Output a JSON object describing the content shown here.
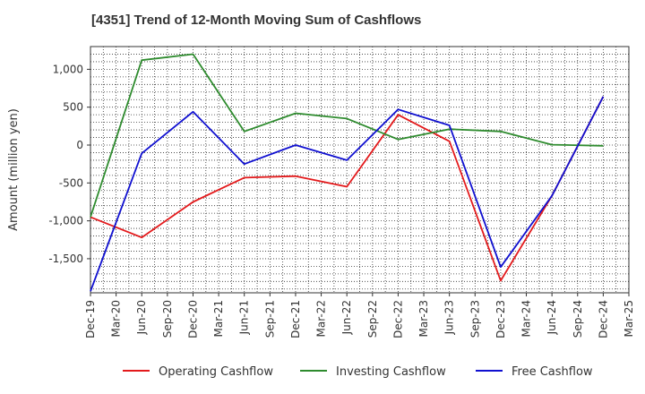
{
  "chart_data": {
    "type": "line",
    "title": "[4351]  Trend of 12-Month Moving Sum of Cashflows",
    "ylabel": "Amount (million yen)",
    "xlabel": "",
    "x_ticks": [
      "Dec-19",
      "Mar-20",
      "Jun-20",
      "Sep-20",
      "Dec-20",
      "Mar-21",
      "Jun-21",
      "Sep-21",
      "Dec-21",
      "Mar-22",
      "Jun-22",
      "Sep-22",
      "Dec-22",
      "Mar-23",
      "Jun-23",
      "Sep-23",
      "Dec-23",
      "Mar-24",
      "Jun-24",
      "Sep-24",
      "Dec-24",
      "Mar-25"
    ],
    "y_ticks": [
      1000,
      500,
      0,
      -500,
      -1000,
      -1500
    ],
    "y_tick_labels": [
      "1,000",
      "500",
      "0",
      "-500",
      "-1,000",
      "-1,500"
    ],
    "ylim": [
      -1950,
      1300
    ],
    "grid": true,
    "legend_position": "bottom",
    "series": [
      {
        "name": "Operating Cashflow",
        "color": "#e31a1c",
        "points": [
          [
            "Dec-19",
            -950
          ],
          [
            "Jun-20",
            -1220
          ],
          [
            "Dec-20",
            -750
          ],
          [
            "Jun-21",
            -430
          ],
          [
            "Dec-21",
            -410
          ],
          [
            "Jun-22",
            -550
          ],
          [
            "Dec-22",
            400
          ],
          [
            "Jun-23",
            50
          ],
          [
            "Dec-23",
            -1790
          ],
          [
            "Jun-24",
            -670
          ],
          [
            "Dec-24",
            640
          ]
        ]
      },
      {
        "name": "Investing Cashflow",
        "color": "#2e8b2e",
        "points": [
          [
            "Dec-19",
            -950
          ],
          [
            "Jun-20",
            1120
          ],
          [
            "Dec-20",
            1200
          ],
          [
            "Jun-21",
            180
          ],
          [
            "Dec-21",
            420
          ],
          [
            "Jun-22",
            350
          ],
          [
            "Dec-22",
            75
          ],
          [
            "Jun-23",
            210
          ],
          [
            "Dec-23",
            180
          ],
          [
            "Jun-24",
            5
          ],
          [
            "Dec-24",
            -10
          ]
        ]
      },
      {
        "name": "Free Cashflow",
        "color": "#1010d0",
        "points": [
          [
            "Dec-19",
            -1930
          ],
          [
            "Jun-20",
            -110
          ],
          [
            "Dec-20",
            440
          ],
          [
            "Jun-21",
            -250
          ],
          [
            "Dec-21",
            0
          ],
          [
            "Jun-22",
            -200
          ],
          [
            "Dec-22",
            470
          ],
          [
            "Jun-23",
            260
          ],
          [
            "Dec-23",
            -1610
          ],
          [
            "Jun-24",
            -670
          ],
          [
            "Dec-24",
            640
          ]
        ]
      }
    ]
  }
}
